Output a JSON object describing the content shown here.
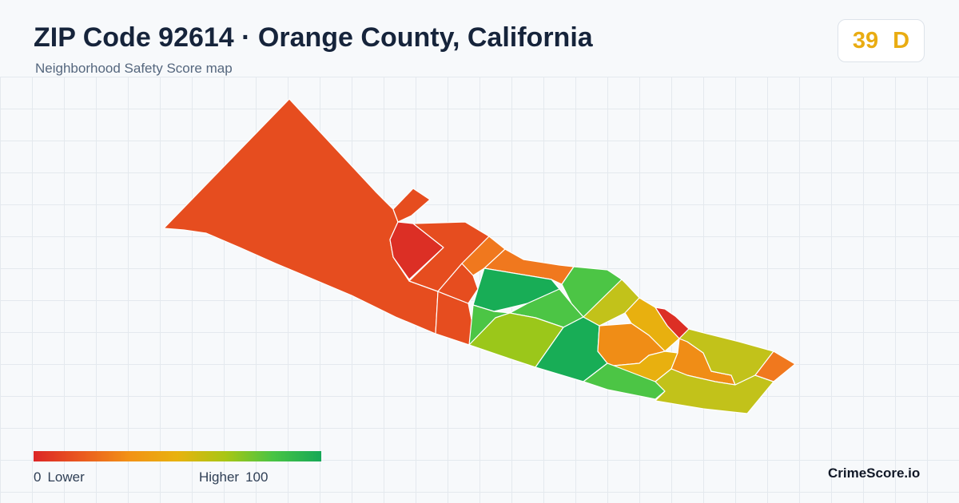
{
  "header": {
    "title": "ZIP Code 92614 · Orange County, California",
    "subtitle": "Neighborhood Safety Score map"
  },
  "score_badge": {
    "score": "39",
    "grade": "D",
    "color": "#e9ac12"
  },
  "legend": {
    "min_value": "0",
    "min_label": "Lower",
    "max_label": "Higher",
    "max_value": "100",
    "gradient": [
      "#dc2626",
      "#ea5a1f",
      "#f29216",
      "#e8b20f",
      "#a9c614",
      "#48c444",
      "#16a857"
    ]
  },
  "brand": {
    "name": "CrimeScore.io"
  },
  "map": {
    "region_colors": {
      "darkred": "#dc2f25",
      "redorange": "#e64d1f",
      "orange": "#f0781e",
      "amber": "#f08d16",
      "gold": "#e8b00f",
      "olive": "#c2c21a",
      "yellowgreen": "#9bc71a",
      "green": "#4cc545",
      "deepgreen": "#18ad56"
    }
  }
}
